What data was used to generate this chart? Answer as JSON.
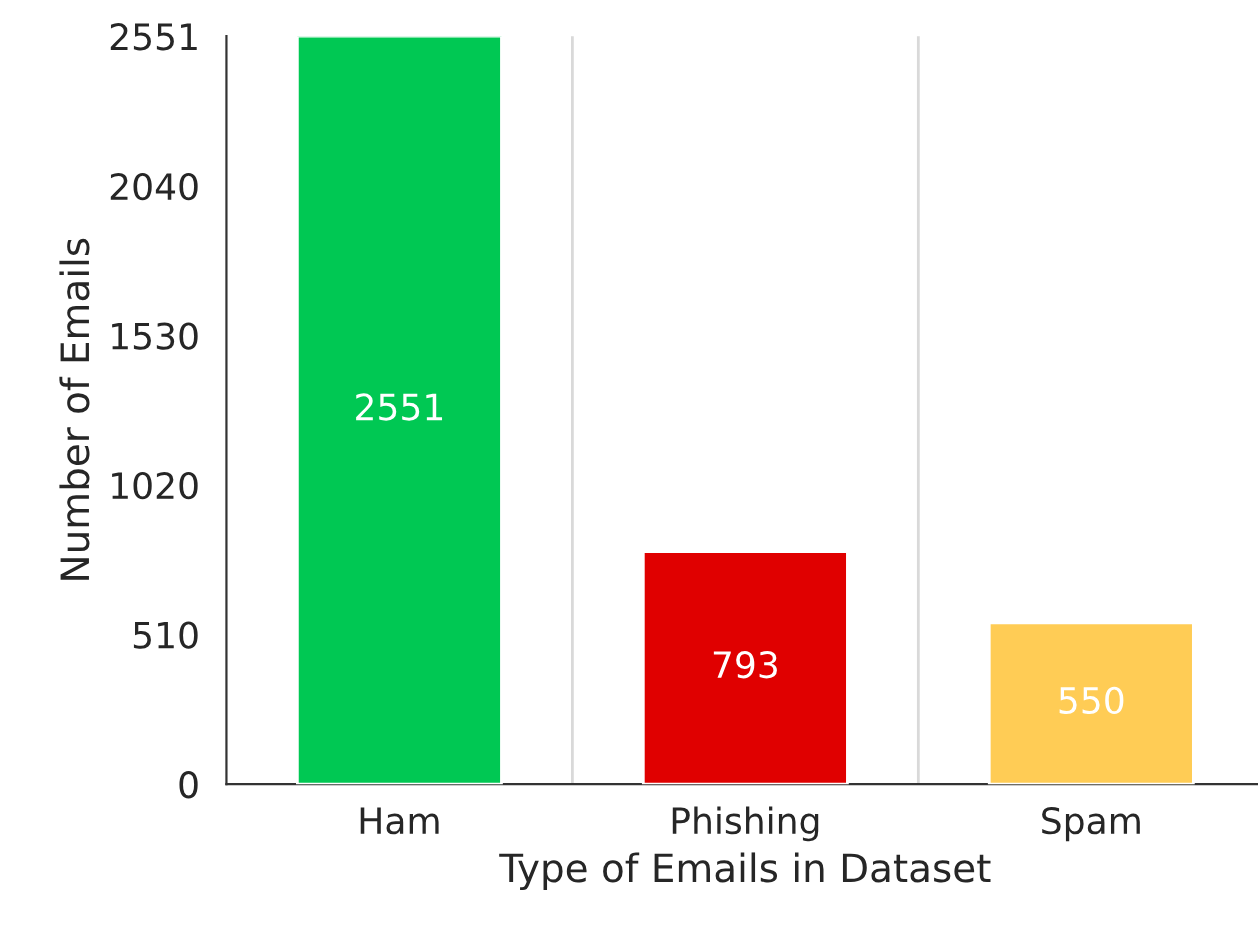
{
  "chart_data": {
    "type": "bar",
    "xlabel": "Type of Emails in Dataset",
    "ylabel": "Number of Emails",
    "categories": [
      "Ham",
      "Phishing",
      "Spam"
    ],
    "values": [
      2551,
      793,
      550
    ],
    "colors": [
      "#00c853",
      "#e00000",
      "#ffcc55"
    ],
    "ylim": [
      0,
      2551
    ],
    "yticks": [
      0,
      510,
      1020,
      1530,
      2040,
      2551
    ],
    "grid": "x",
    "data_labels": true
  }
}
